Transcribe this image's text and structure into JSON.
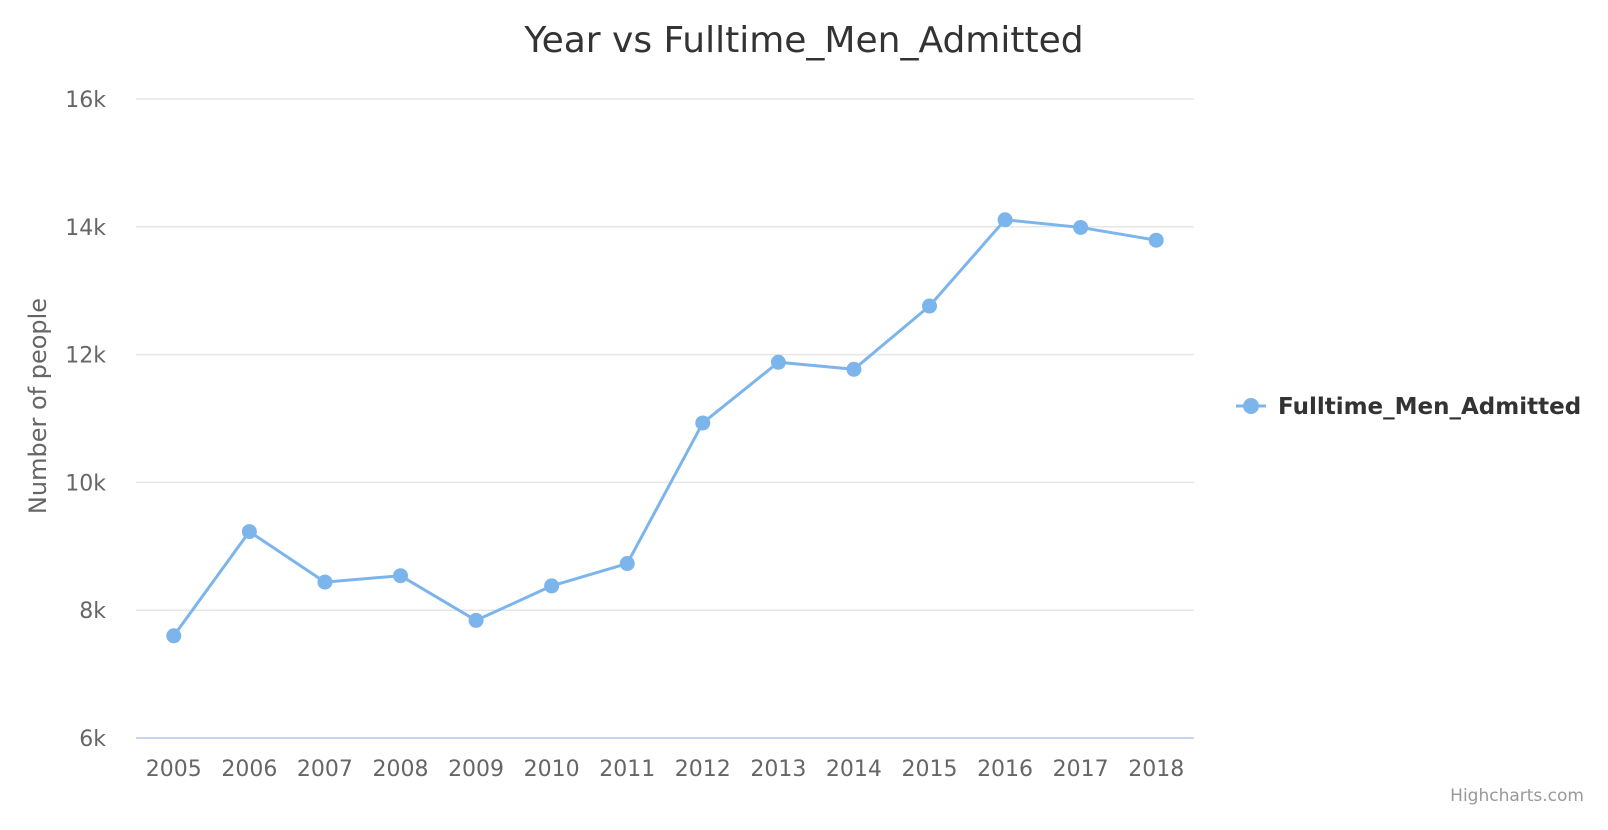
{
  "chart_data": {
    "type": "line",
    "title": "Year vs Fulltime_Men_Admitted",
    "xlabel": "",
    "ylabel": "Number of people",
    "categories": [
      "2005",
      "2006",
      "2007",
      "2008",
      "2009",
      "2010",
      "2011",
      "2012",
      "2013",
      "2014",
      "2015",
      "2016",
      "2017",
      "2018"
    ],
    "series": [
      {
        "name": "Fulltime_Men_Admitted",
        "color": "#7cb5ec",
        "values": [
          7600,
          9230,
          8440,
          8540,
          7840,
          8380,
          8730,
          10930,
          11880,
          11770,
          12760,
          14110,
          13990,
          13790
        ]
      }
    ],
    "ylim": [
      6000,
      16000
    ],
    "yticks": [
      6000,
      8000,
      10000,
      12000,
      14000,
      16000
    ],
    "ytick_labels": [
      "6k",
      "8k",
      "10k",
      "12k",
      "14k",
      "16k"
    ],
    "grid": true,
    "legend_position": "right"
  },
  "credits": "Highcharts.com"
}
